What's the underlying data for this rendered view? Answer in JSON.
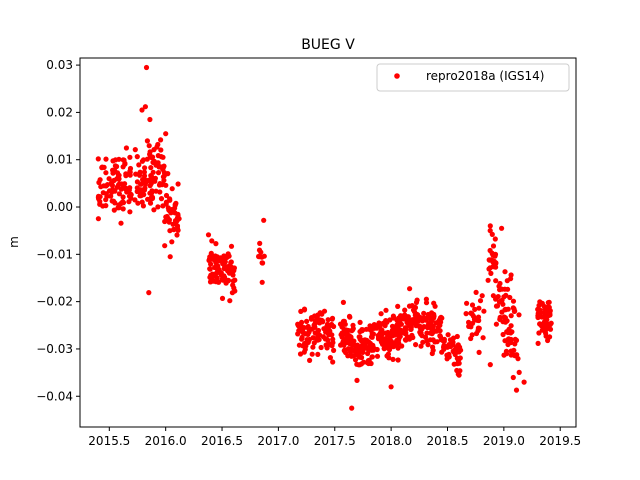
{
  "chart_data": {
    "type": "scatter",
    "title": "BUEG V",
    "xlabel": "",
    "ylabel": "m",
    "xlim": [
      2015.24,
      2019.64
    ],
    "ylim": [
      -0.0465,
      0.0315
    ],
    "xticks": [
      "2015.5",
      "2016.0",
      "2016.5",
      "2017.0",
      "2017.5",
      "2018.0",
      "2018.5",
      "2019.0",
      "2019.5"
    ],
    "yticks": [
      "0.03",
      "0.02",
      "0.01",
      "0.00",
      "−0.01",
      "−0.02",
      "−0.03",
      "−0.04"
    ],
    "grid": false,
    "legend_position": "top-right",
    "series": [
      {
        "name": "repro2018a (IGS14)",
        "color": "#ff0000",
        "clusters": [
          {
            "x_start": 2015.4,
            "x_end": 2015.99,
            "y_start": 0.003,
            "y_end": 0.008,
            "spread": 0.0045,
            "count": 190
          },
          {
            "x_start": 2015.99,
            "x_end": 2016.12,
            "y_start": 0.001,
            "y_end": -0.003,
            "spread": 0.0035,
            "count": 45
          },
          {
            "x_start": 2016.38,
            "x_end": 2016.62,
            "y_start": -0.012,
            "y_end": -0.015,
            "spread": 0.003,
            "count": 90
          },
          {
            "x_start": 2016.82,
            "x_end": 2016.88,
            "y_start": -0.01,
            "y_end": -0.009,
            "spread": 0.003,
            "count": 10
          },
          {
            "x_start": 2017.17,
            "x_end": 2017.5,
            "y_start": -0.027,
            "y_end": -0.027,
            "spread": 0.003,
            "count": 110
          },
          {
            "x_start": 2017.55,
            "x_end": 2017.8,
            "y_start": -0.028,
            "y_end": -0.03,
            "spread": 0.0035,
            "count": 110
          },
          {
            "x_start": 2017.8,
            "x_end": 2018.1,
            "y_start": -0.029,
            "y_end": -0.026,
            "spread": 0.003,
            "count": 130
          },
          {
            "x_start": 2018.1,
            "x_end": 2018.45,
            "y_start": -0.024,
            "y_end": -0.026,
            "spread": 0.003,
            "count": 130
          },
          {
            "x_start": 2018.45,
            "x_end": 2018.62,
            "y_start": -0.028,
            "y_end": -0.032,
            "spread": 0.003,
            "count": 50
          },
          {
            "x_start": 2018.66,
            "x_end": 2018.83,
            "y_start": -0.025,
            "y_end": -0.021,
            "spread": 0.004,
            "count": 30
          },
          {
            "x_start": 2018.86,
            "x_end": 2018.93,
            "y_start": -0.012,
            "y_end": -0.012,
            "spread": 0.005,
            "count": 28
          },
          {
            "x_start": 2018.93,
            "x_end": 2019.14,
            "y_start": -0.02,
            "y_end": -0.028,
            "spread": 0.006,
            "count": 70
          },
          {
            "x_start": 2019.3,
            "x_end": 2019.42,
            "y_start": -0.024,
            "y_end": -0.025,
            "spread": 0.0035,
            "count": 60
          }
        ],
        "points": [
          [
            2015.83,
            0.0295
          ],
          [
            2015.79,
            0.0205
          ],
          [
            2015.82,
            0.0212
          ],
          [
            2015.86,
            0.0185
          ],
          [
            2016.0,
            0.0155
          ],
          [
            2015.85,
            -0.0181
          ],
          [
            2016.04,
            -0.0105
          ],
          [
            2016.87,
            -0.0028
          ],
          [
            2017.65,
            -0.0425
          ],
          [
            2018.0,
            -0.038
          ],
          [
            2018.88,
            -0.004
          ],
          [
            2018.98,
            -0.0045
          ],
          [
            2019.18,
            -0.037
          ],
          [
            2018.88,
            -0.0333
          ]
        ]
      }
    ]
  }
}
